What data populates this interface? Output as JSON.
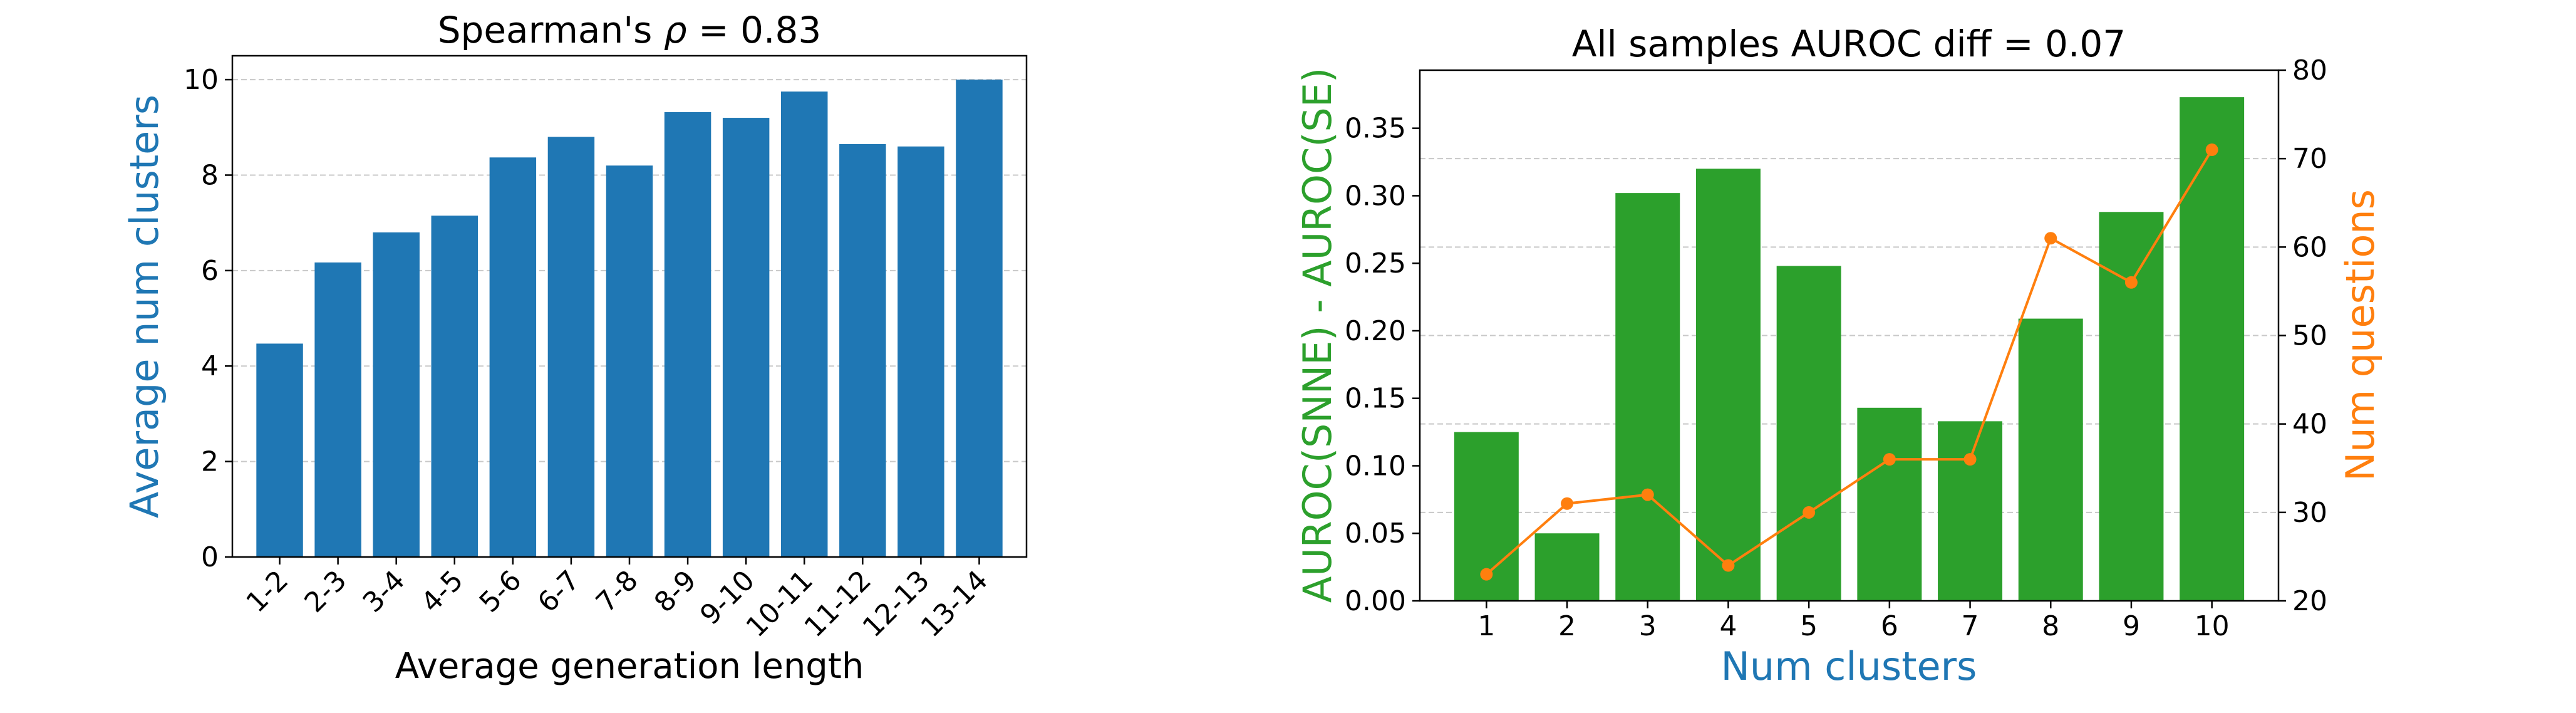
{
  "chart_data": [
    {
      "type": "bar",
      "title": "Spearman's ρ = 0.83",
      "title_parts": {
        "prefix": "Spearman's ",
        "symbol": "ρ",
        "suffix": " = 0.83"
      },
      "xlabel": "Average generation length",
      "ylabel": "Average num clusters",
      "categories": [
        "1-2",
        "2-3",
        "3-4",
        "4-5",
        "5-6",
        "6-7",
        "7-8",
        "8-9",
        "9-10",
        "10-11",
        "11-12",
        "12-13",
        "13-14"
      ],
      "values": [
        4.47,
        6.17,
        6.8,
        7.15,
        8.37,
        8.8,
        8.2,
        9.32,
        9.2,
        9.75,
        8.65,
        8.6,
        10.0
      ],
      "yticks": [
        0,
        2,
        4,
        6,
        8,
        10
      ],
      "ylim": [
        0,
        10.5
      ],
      "grid": "y-dashed",
      "bar_color": "#1f77b4"
    },
    {
      "type": "bar+line",
      "title": "All samples AUROC diff = 0.07",
      "xlabel": "Num clusters",
      "ylabel": "AUROC(SNNE) - AUROC(SE)",
      "y2label": "Num questions",
      "categories": [
        "1",
        "2",
        "3",
        "4",
        "5",
        "6",
        "7",
        "8",
        "9",
        "10"
      ],
      "values": [
        0.125,
        0.05,
        0.302,
        0.32,
        0.248,
        0.143,
        0.133,
        0.209,
        0.288,
        0.373
      ],
      "line_values": [
        23,
        31,
        32,
        24,
        30,
        36,
        36,
        61,
        56,
        71
      ],
      "yticks": [
        "0.00",
        "0.05",
        "0.10",
        "0.15",
        "0.20",
        "0.25",
        "0.30",
        "0.35"
      ],
      "ylim": [
        0,
        0.393
      ],
      "y2ticks": [
        20,
        30,
        40,
        50,
        60,
        70,
        80
      ],
      "y2lim": [
        20,
        80
      ],
      "grid": "y2-dashed",
      "bar_color": "#2ca02c",
      "line_color": "#ff7f0e"
    }
  ]
}
